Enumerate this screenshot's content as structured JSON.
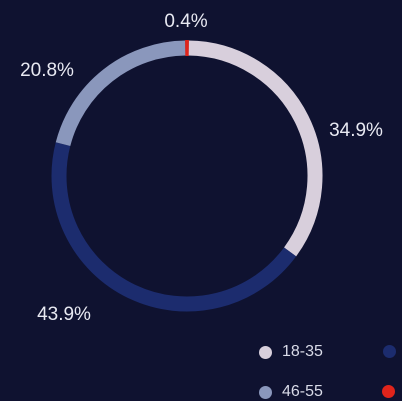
{
  "chart_data": {
    "type": "pie",
    "style": "donut",
    "slices": [
      {
        "label": "34.9%",
        "value": 34.9,
        "color": "#d8cfdc"
      },
      {
        "label": "43.9%",
        "value": 43.9,
        "color": "#1c2c6e"
      },
      {
        "label": "20.8%",
        "value": 20.8,
        "color": "#8a97bc"
      },
      {
        "label": "0.4%",
        "value": 0.4,
        "color": "#e0241b"
      }
    ],
    "legend": [
      {
        "label": "18-35",
        "color": "#d8cfdc"
      },
      {
        "label": "",
        "color": "#1c2c6e"
      },
      {
        "label": "46-55",
        "color": "#8a97bc"
      },
      {
        "label": "",
        "color": "#e0241b"
      }
    ]
  }
}
